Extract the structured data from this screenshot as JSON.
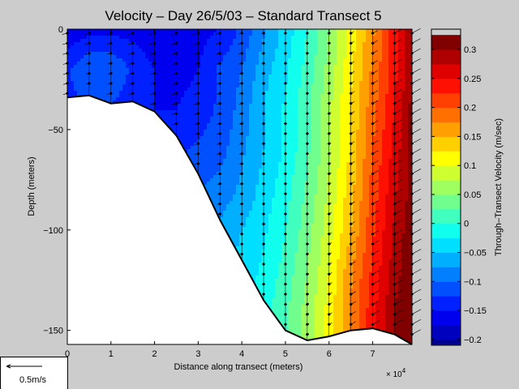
{
  "chart_data": {
    "type": "heatmap",
    "title": "Velocity – Day 26/5/03 – Standard Transect 5",
    "xlabel": "Distance along transect (meters)",
    "ylabel": "Depth (meters)",
    "x_multiplier_label": "× 10",
    "x_multiplier_exponent": "4",
    "x_ticks": [
      0,
      1,
      2,
      3,
      4,
      5,
      6,
      7
    ],
    "x_tick_labels": [
      "0",
      "1",
      "2",
      "3",
      "4",
      "5",
      "6",
      "7"
    ],
    "xlim": [
      0,
      79000
    ],
    "y_ticks": [
      0,
      -50,
      -100,
      -150
    ],
    "y_tick_labels": [
      "0",
      "−50",
      "−100",
      "−150"
    ],
    "ylim": [
      -157,
      0
    ],
    "colorbar": {
      "label": "Through–Transect Velocity (m/sec)",
      "range": [
        -0.21,
        0.335
      ],
      "ticks": [
        -0.2,
        -0.15,
        -0.1,
        -0.05,
        0,
        0.05,
        0.1,
        0.15,
        0.2,
        0.25,
        0.3
      ],
      "tick_labels": [
        "−0.2",
        "−0.15",
        "−0.1",
        "−0.05",
        "0",
        "0.05",
        "0.1",
        "0.15",
        "0.2",
        "0.25",
        "0.3"
      ],
      "levels": [
        -0.225,
        -0.2,
        -0.175,
        -0.15,
        -0.125,
        -0.1,
        -0.075,
        -0.05,
        -0.025,
        0,
        0.025,
        0.05,
        0.075,
        0.1,
        0.125,
        0.15,
        0.175,
        0.2,
        0.225,
        0.25,
        0.275,
        0.3,
        0.325
      ],
      "colors": [
        "#00008f",
        "#0000bf",
        "#0000ef",
        "#0020ff",
        "#0050ff",
        "#0080ff",
        "#00afff",
        "#00dfff",
        "#10ffef",
        "#40ffbf",
        "#70ff8f",
        "#9fff60",
        "#cfff30",
        "#ffff00",
        "#ffcf00",
        "#ff9f00",
        "#ff7000",
        "#ff4000",
        "#ff1000",
        "#df0000",
        "#af0000",
        "#800000"
      ]
    },
    "bottom_profile": [
      {
        "x": 0,
        "depth": -34
      },
      {
        "x": 5000,
        "depth": -33
      },
      {
        "x": 10000,
        "depth": -37
      },
      {
        "x": 15000,
        "depth": -36
      },
      {
        "x": 20000,
        "depth": -41
      },
      {
        "x": 25000,
        "depth": -53
      },
      {
        "x": 30000,
        "depth": -72
      },
      {
        "x": 35000,
        "depth": -95
      },
      {
        "x": 40000,
        "depth": -115
      },
      {
        "x": 45000,
        "depth": -135
      },
      {
        "x": 50000,
        "depth": -150
      },
      {
        "x": 55000,
        "depth": -155
      },
      {
        "x": 60000,
        "depth": -153
      },
      {
        "x": 65000,
        "depth": -150
      },
      {
        "x": 70000,
        "depth": -149
      },
      {
        "x": 75000,
        "depth": -152
      },
      {
        "x": 79000,
        "depth": -157
      }
    ],
    "station_x": [
      0,
      5000,
      10000,
      15000,
      20000,
      25000,
      30000,
      35000,
      40000,
      45000,
      50000,
      55000,
      60000,
      65000,
      70000,
      75000,
      79000
    ],
    "sample_depth_interval": 5,
    "velocity_field": {
      "x": [
        0,
        5000,
        10000,
        15000,
        20000,
        25000,
        30000,
        35000,
        40000,
        45000,
        50000,
        55000,
        60000,
        65000,
        70000,
        75000,
        79000
      ],
      "depth": [
        0,
        -20,
        -40,
        -60,
        -80,
        -100,
        -120,
        -140,
        -157
      ],
      "values": [
        [
          -0.17,
          -0.16,
          -0.16,
          -0.16,
          -0.17,
          -0.17,
          -0.16,
          -0.15,
          -0.12,
          -0.08,
          -0.04,
          0.0,
          0.05,
          0.11,
          0.17,
          0.24,
          0.3
        ],
        [
          -0.13,
          -0.1,
          -0.1,
          -0.13,
          -0.15,
          -0.16,
          -0.15,
          -0.12,
          -0.1,
          -0.06,
          -0.03,
          0.01,
          0.06,
          0.12,
          0.18,
          0.24,
          0.3
        ],
        [
          -0.13,
          -0.13,
          -0.13,
          -0.14,
          -0.15,
          -0.15,
          -0.14,
          -0.12,
          -0.09,
          -0.05,
          -0.02,
          0.02,
          0.07,
          0.13,
          0.19,
          0.25,
          0.31
        ],
        [
          -0.13,
          -0.13,
          -0.13,
          -0.13,
          -0.13,
          -0.13,
          -0.12,
          -0.11,
          -0.08,
          -0.05,
          -0.02,
          0.02,
          0.07,
          0.13,
          0.2,
          0.26,
          0.31
        ],
        [
          -0.12,
          -0.12,
          -0.12,
          -0.12,
          -0.12,
          -0.11,
          -0.1,
          -0.09,
          -0.07,
          -0.04,
          -0.01,
          0.03,
          0.08,
          0.14,
          0.21,
          0.27,
          0.31
        ],
        [
          -0.11,
          -0.11,
          -0.11,
          -0.11,
          -0.11,
          -0.1,
          -0.08,
          -0.07,
          -0.05,
          -0.03,
          0.0,
          0.04,
          0.09,
          0.15,
          0.22,
          0.28,
          0.32
        ],
        [
          -0.1,
          -0.1,
          -0.1,
          -0.1,
          -0.1,
          -0.09,
          -0.07,
          -0.06,
          -0.04,
          -0.02,
          0.01,
          0.05,
          0.1,
          0.17,
          0.23,
          0.29,
          0.32
        ],
        [
          -0.1,
          -0.1,
          -0.1,
          -0.1,
          -0.1,
          -0.08,
          -0.06,
          -0.05,
          -0.03,
          -0.01,
          0.02,
          0.06,
          0.11,
          0.18,
          0.24,
          0.3,
          0.32
        ],
        [
          -0.1,
          -0.1,
          -0.1,
          -0.1,
          -0.1,
          -0.08,
          -0.06,
          -0.05,
          -0.03,
          -0.01,
          0.02,
          0.06,
          0.11,
          0.18,
          0.24,
          0.3,
          0.3
        ]
      ]
    },
    "scale_arrow": {
      "label": "0.5m/s",
      "value": 0.5
    },
    "colors": {
      "background": "#cccccc",
      "seafloor": "#ffffff",
      "marker": "#000000"
    }
  }
}
